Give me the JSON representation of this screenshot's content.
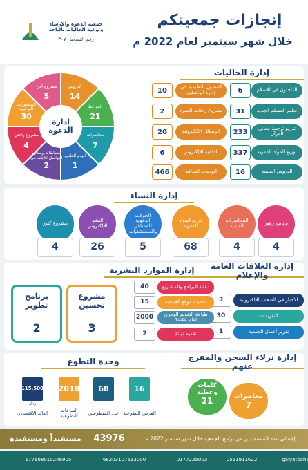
{
  "header": {
    "title": "إنجازات جمعيتكم",
    "subtitle": "خلال شهر سبتمبر لعام 2022 م",
    "org_name": "جمعية الدعوة والإرشاد وتوعية الجاليات بالباحة",
    "registration": "رقم التسجيل ٣٠٧"
  },
  "communities": {
    "title": "إدارة الجاليات",
    "items": [
      {
        "label": "الداخلون في الإسلام",
        "value": 6
      },
      {
        "label": "تعليم المسلم الجديد",
        "value": 31
      },
      {
        "label": "توزيع ترجمة معاني القرآن",
        "value": 233
      },
      {
        "label": "توزيع المواد الدعوية",
        "value": 337
      },
      {
        "label": "الدروس العلمية",
        "value": 16
      },
      {
        "label": "الفصول التعليمية في إدارة الواصلين",
        "value": 10
      },
      {
        "label": "مشروع رحلات العمرة",
        "value": 2
      },
      {
        "label": "الرسائل الالكترونية",
        "value": 20
      },
      {
        "label": "الداعية الإلكتروني",
        "value": 6
      },
      {
        "label": "الوجبات الغذائية",
        "value": 466
      }
    ]
  },
  "dawah": {
    "title": "إدارة الدعوة",
    "items": [
      {
        "label": "الدروس",
        "value": 14
      },
      {
        "label": "المواعظ",
        "value": 21
      },
      {
        "label": "محاضرات",
        "value": 7
      },
      {
        "label": "اليوم العلمي",
        "value": 1
      },
      {
        "label": "مسابقات وسائل التواصل الاجتماعي",
        "value": 2
      },
      {
        "label": "مشروع واحتي",
        "value": 4
      },
      {
        "label": "المنشورات التوعوية",
        "value": 30
      },
      {
        "label": "مشروع أمن",
        "value": 5
      }
    ]
  },
  "women": {
    "title": "إدارة النساء",
    "items": [
      {
        "label": "برنامج زهور",
        "value": 4
      },
      {
        "label": "المحاضرات العلمية",
        "value": 4
      },
      {
        "label": "توزيع المواد الدعوية",
        "value": 68
      },
      {
        "label": "الجولات الدعوية للمشاغل والمستشفيات",
        "value": 5
      },
      {
        "label": "النشر الإلكتروني",
        "value": 26
      },
      {
        "label": "مشروع كنوز",
        "value": 4
      }
    ]
  },
  "hr": {
    "title": "إدارة الموارد البشرية",
    "items": [
      {
        "label": "برنامج تطوير",
        "value": 2
      },
      {
        "label": "مشروع تحسين",
        "value": 3
      }
    ]
  },
  "pr": {
    "title": "إدارة العلاقات العامة والإعلام",
    "items": [
      {
        "label": "الأخبار في الصحف الإلكترونية",
        "value": 3
      },
      {
        "label": "التغريدات",
        "value": 30
      },
      {
        "label": "تقرير أعمال الجمعية",
        "value": 1
      },
      {
        "label": "دعاية البرامج والمشاريع",
        "value": 40
      },
      {
        "label": "تحديث موقع الجمعية",
        "value": 15
      },
      {
        "label": "طباعة التقويم الهجري لعام 1444",
        "value": 2000
      },
      {
        "label": "تقديم تهنئة",
        "value": 2
      }
    ]
  },
  "volunteering": {
    "title": "وحدة التطوع",
    "items": [
      {
        "label": "الفرص التطوعية",
        "value": 16
      },
      {
        "label": "عدد المتطوعين",
        "value": 68
      },
      {
        "label": "الساعات التطوعية",
        "value": 2018
      },
      {
        "label": "العائد الاقتصادي",
        "value": "115,500",
        "unit": "ريال"
      }
    ]
  },
  "prison": {
    "title": "إدارة نزلاء السجن والمفرج عنهم",
    "items": [
      {
        "label": "محاضرات",
        "value": 7
      },
      {
        "label": "كلمات وعظية",
        "value": 21
      }
    ]
  },
  "summary": {
    "text": "إجمالي عدد المستفيدين من برامج الجمعية خلال شهر سبتمبر 2022 م",
    "total": 43976,
    "total_label": "مستفيداً ومستفيدة"
  },
  "contacts": [
    "galyatbaha",
    "0551911622",
    "0177225003",
    "68203107613000",
    "177608010246905"
  ]
}
